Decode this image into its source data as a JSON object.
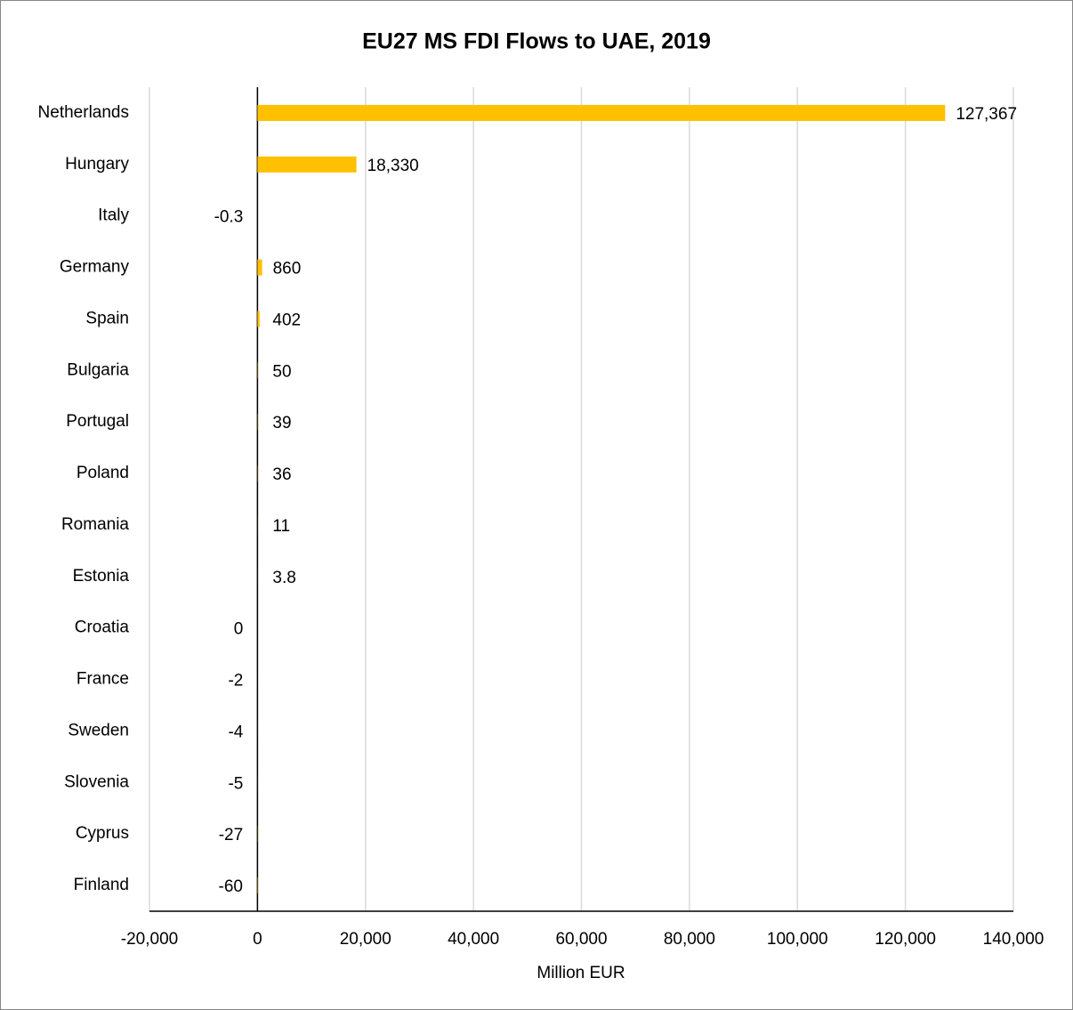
{
  "chart_data": {
    "type": "bar",
    "orientation": "horizontal",
    "title": "EU27 MS FDI Flows to UAE, 2019",
    "x_label": "Million EUR",
    "categories": [
      "Netherlands",
      "Hungary",
      "Italy",
      "Germany",
      "Spain",
      "Bulgaria",
      "Portugal",
      "Poland",
      "Romania",
      "Estonia",
      "Croatia",
      "France",
      "Sweden",
      "Slovenia",
      "Cyprus",
      "Finland"
    ],
    "values": [
      127367,
      18330,
      -0.3,
      860,
      402,
      50,
      39,
      36,
      11,
      3.8,
      0,
      -2,
      -4,
      -5,
      -27,
      -60
    ],
    "value_labels": [
      "127,367",
      "18,330",
      "-0.3",
      "860",
      "402",
      "50",
      "39",
      "36",
      "11",
      "3.8",
      "0",
      "-2",
      "-4",
      "-5",
      "-27",
      "-60"
    ],
    "color": "#FFC000",
    "xlim": [
      -20000,
      140000
    ],
    "xticks": [
      {
        "value": -20000,
        "label": "-20,000"
      },
      0,
      {
        "value": 20000,
        "label": "20,000"
      },
      {
        "value": 40000,
        "label": "40,000"
      },
      {
        "value": 60000,
        "label": "60,000"
      },
      {
        "value": 80000,
        "label": "80,000"
      },
      {
        "value": 100000,
        "label": "100,000"
      },
      {
        "value": 120000,
        "label": "120,000"
      },
      {
        "value": 140000,
        "label": "140,000"
      }
    ],
    "grid": true
  }
}
